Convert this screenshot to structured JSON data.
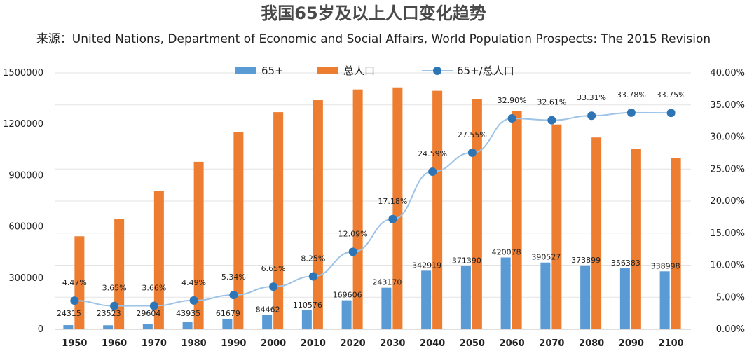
{
  "chart_data": {
    "type": "bar",
    "title": "我国65岁及以上人口变化趋势",
    "subtitle": "来源：United Nations, Department of Economic and Social Affairs, World Population Prospects: The 2015 Revision",
    "categories": [
      "1950",
      "1960",
      "1970",
      "1980",
      "1990",
      "2000",
      "2010",
      "2020",
      "2030",
      "2040",
      "2050",
      "2060",
      "2070",
      "2080",
      "2090",
      "2100"
    ],
    "series": [
      {
        "name": "65+",
        "type": "bar",
        "axis": "left",
        "color": "#5b9bd5",
        "values": [
          24315,
          23523,
          29604,
          43935,
          61679,
          84462,
          110576,
          169606,
          243170,
          342919,
          371390,
          420078,
          390527,
          373899,
          356383,
          338998
        ],
        "labels": [
          "24315",
          "23523",
          "29604",
          "43935",
          "61679",
          "84462",
          "110576",
          "169606",
          "243170",
          "342919",
          "371390",
          "420078",
          "390527",
          "373899",
          "356383",
          "338998"
        ]
      },
      {
        "name": "总人口",
        "type": "bar",
        "axis": "left",
        "color": "#ed7d31",
        "values": [
          544000,
          646000,
          808000,
          980000,
          1155000,
          1270000,
          1340000,
          1403000,
          1415000,
          1395000,
          1348000,
          1277000,
          1198000,
          1122000,
          1055000,
          1004000
        ]
      },
      {
        "name": "65+/总人口",
        "type": "line",
        "axis": "right",
        "color": "#2e75b6",
        "line_color": "#9dc3e6",
        "values": [
          4.47,
          3.65,
          3.66,
          4.49,
          5.34,
          6.65,
          8.25,
          12.09,
          17.18,
          24.59,
          27.55,
          32.9,
          32.61,
          33.31,
          33.78,
          33.75
        ],
        "labels": [
          "4.47%",
          "3.65%",
          "3.66%",
          "4.49%",
          "5.34%",
          "6.65%",
          "8.25%",
          "12.09%",
          "17.18%",
          "24.59%",
          "27.55%",
          "32.90%",
          "32.61%",
          "33.31%",
          "33.78%",
          "33.75%"
        ]
      }
    ],
    "y_left": {
      "min": 0,
      "max": 1500000,
      "ticks": [
        "0",
        "300000",
        "600000",
        "900000",
        "1200000",
        "1500000"
      ],
      "tick_values": [
        0,
        300000,
        600000,
        900000,
        1200000,
        1500000
      ]
    },
    "y_right": {
      "min": 0,
      "max": 40,
      "ticks": [
        "0.00%",
        "5.00%",
        "10.00%",
        "15.00%",
        "20.00%",
        "25.00%",
        "30.00%",
        "35.00%",
        "40.00%"
      ],
      "tick_values": [
        0,
        5,
        10,
        15,
        20,
        25,
        30,
        35,
        40
      ]
    },
    "grid": true,
    "legend": "top-center"
  }
}
